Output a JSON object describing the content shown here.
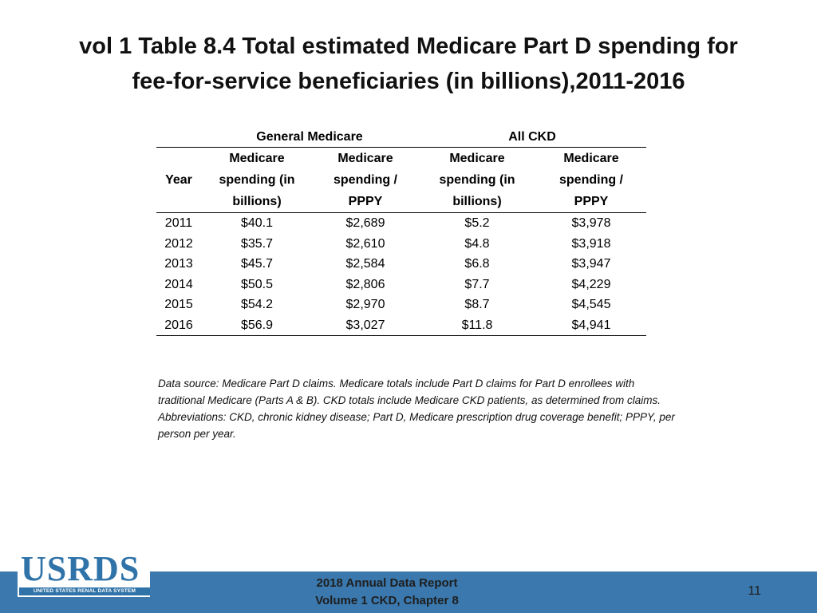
{
  "title_line1": "vol 1 Table 8.4 Total estimated Medicare Part D spending for",
  "title_line2": "fee-for-service beneficiaries (in billions),2011-2016",
  "table": {
    "group_headers": [
      "General Medicare",
      "All CKD"
    ],
    "year_header": "Year",
    "columns": [
      [
        "Medicare",
        "spending (in",
        "billions)"
      ],
      [
        "Medicare",
        "spending /",
        "PPPY"
      ],
      [
        "Medicare",
        "spending (in",
        "billions)"
      ],
      [
        "Medicare",
        "spending /",
        "PPPY"
      ]
    ],
    "rows": [
      [
        "2011",
        "$40.1",
        "$2,689",
        "$5.2",
        "$3,978"
      ],
      [
        "2012",
        "$35.7",
        "$2,610",
        "$4.8",
        "$3,918"
      ],
      [
        "2013",
        "$45.7",
        "$2,584",
        "$6.8",
        "$3,947"
      ],
      [
        "2014",
        "$50.5",
        "$2,806",
        "$7.7",
        "$4,229"
      ],
      [
        "2015",
        "$54.2",
        "$2,970",
        "$8.7",
        "$4,545"
      ],
      [
        "2016",
        "$56.9",
        "$3,027",
        "$11.8",
        "$4,941"
      ]
    ]
  },
  "note": "Data source: Medicare Part D claims. Medicare totals include Part D claims for Part D enrollees with traditional Medicare (Parts A & B). CKD totals include Medicare CKD patients, as determined from claims. Abbreviations: CKD, chronic kidney disease; Part D, Medicare prescription drug coverage benefit; PPPY, per person per year.",
  "footer": {
    "line1": "2018 Annual Data Report",
    "line2": "Volume 1 CKD, Chapter 8",
    "page_number": "11"
  },
  "logo": {
    "word": "USRDS",
    "subtitle": "UNITED STATES RENAL DATA SYSTEM"
  },
  "colors": {
    "footer_bar": "#3a78ad",
    "logo": "#2f73a8"
  }
}
